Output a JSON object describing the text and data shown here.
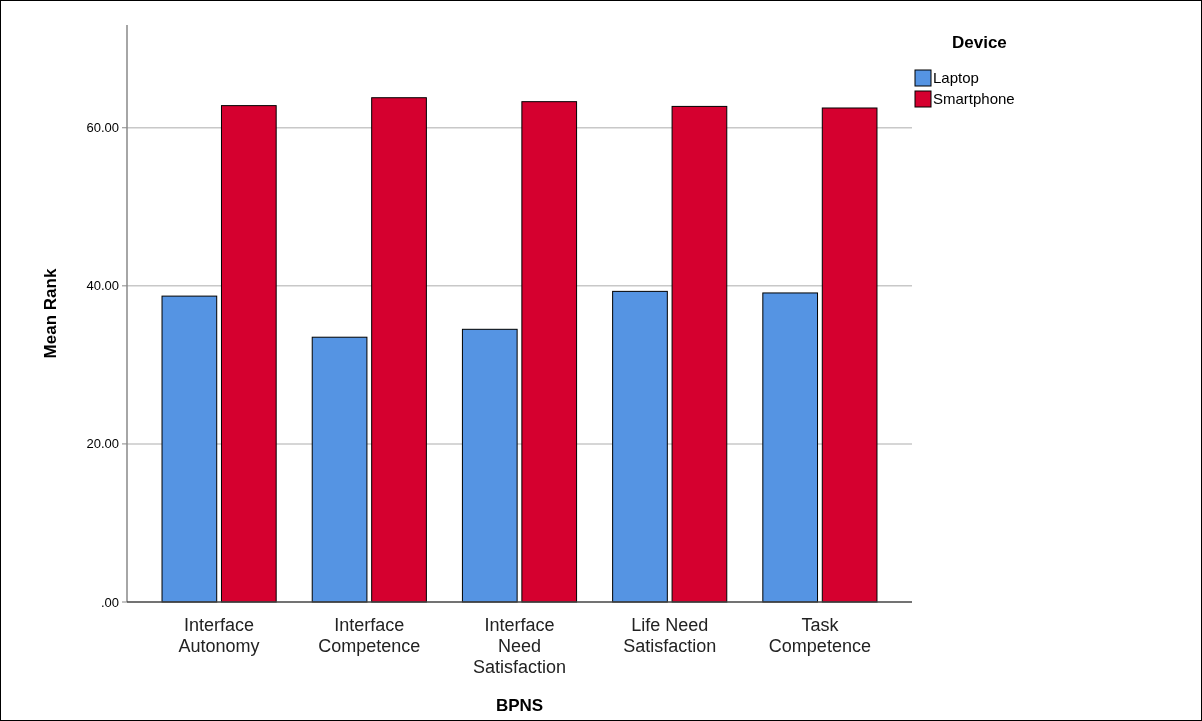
{
  "chart_data": {
    "type": "bar",
    "xlabel": "BPNS",
    "ylabel": "Mean Rank",
    "legend_title": "Device",
    "categories": [
      "Interface Autonomy",
      "Interface Competence",
      "Interface Need Satisfaction",
      "Life Need Satisfaction",
      "Task Competence"
    ],
    "series": [
      {
        "name": "Laptop",
        "color": "#5594e3",
        "values": [
          38.7,
          33.5,
          34.5,
          39.3,
          39.1
        ]
      },
      {
        "name": "Smartphone",
        "color": "#d5002f",
        "values": [
          62.8,
          63.8,
          63.3,
          62.7,
          62.5
        ]
      }
    ],
    "ylim": [
      0,
      73
    ],
    "yticks": [
      {
        "value": 0,
        "label": ".00"
      },
      {
        "value": 20,
        "label": "20.00"
      },
      {
        "value": 40,
        "label": "40.00"
      },
      {
        "value": 60,
        "label": "60.00"
      }
    ],
    "grid": "y",
    "legend": "top right"
  }
}
